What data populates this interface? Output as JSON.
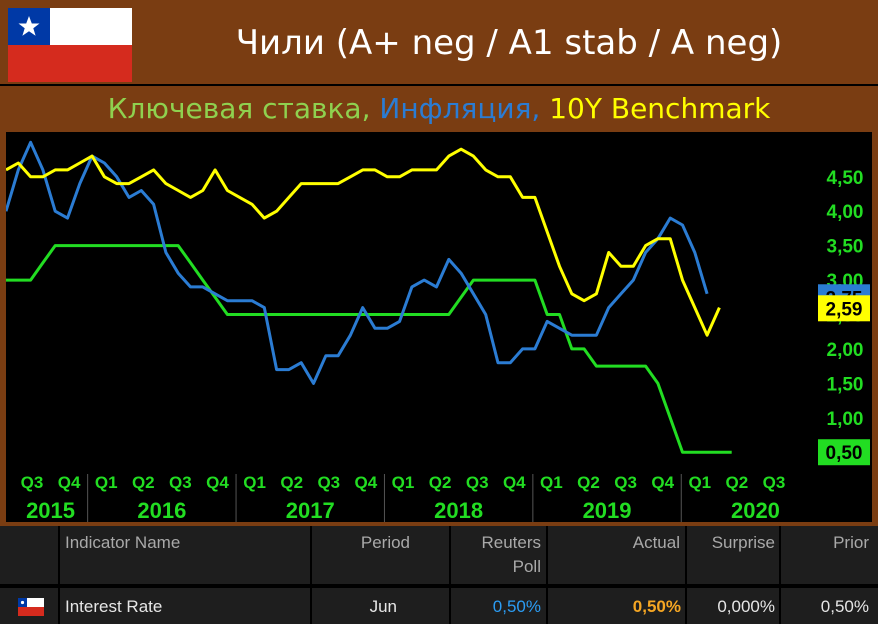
{
  "header": {
    "title": "Чили (A+ neg / A1 stab / A neg)",
    "subtitle_parts": [
      {
        "text": "Ключевая ставка,",
        "color": "#8fd14f"
      },
      {
        "text": "Инфляция,",
        "color": "#2b7cd3"
      },
      {
        "text": "10Y Benchmark",
        "color": "#ffff00"
      }
    ]
  },
  "chart_data": {
    "type": "line",
    "x": [
      "2015-07",
      "2015-08",
      "2015-09",
      "2015-10",
      "2015-11",
      "2015-12",
      "2016-01",
      "2016-02",
      "2016-03",
      "2016-04",
      "2016-05",
      "2016-06",
      "2016-07",
      "2016-08",
      "2016-09",
      "2016-10",
      "2016-11",
      "2016-12",
      "2017-01",
      "2017-02",
      "2017-03",
      "2017-04",
      "2017-05",
      "2017-06",
      "2017-07",
      "2017-08",
      "2017-09",
      "2017-10",
      "2017-11",
      "2017-12",
      "2018-01",
      "2018-02",
      "2018-03",
      "2018-04",
      "2018-05",
      "2018-06",
      "2018-07",
      "2018-08",
      "2018-09",
      "2018-10",
      "2018-11",
      "2018-12",
      "2019-01",
      "2019-02",
      "2019-03",
      "2019-04",
      "2019-05",
      "2019-06",
      "2019-07",
      "2019-08",
      "2019-09",
      "2019-10",
      "2019-11",
      "2019-12",
      "2020-01",
      "2020-02",
      "2020-03",
      "2020-04",
      "2020-05",
      "2020-06",
      "2020-07",
      "2020-08"
    ],
    "series": [
      {
        "name": "Ключевая ставка",
        "color": "#22dd22",
        "values": [
          3.0,
          3.0,
          3.0,
          3.25,
          3.5,
          3.5,
          3.5,
          3.5,
          3.5,
          3.5,
          3.5,
          3.5,
          3.5,
          3.5,
          3.5,
          3.25,
          3.0,
          2.75,
          2.5,
          2.5,
          2.5,
          2.5,
          2.5,
          2.5,
          2.5,
          2.5,
          2.5,
          2.5,
          2.5,
          2.5,
          2.5,
          2.5,
          2.5,
          2.5,
          2.5,
          2.5,
          2.5,
          2.75,
          3.0,
          3.0,
          3.0,
          3.0,
          3.0,
          3.0,
          2.5,
          2.5,
          2.0,
          2.0,
          1.75,
          1.75,
          1.75,
          1.75,
          1.75,
          1.5,
          1.0,
          0.5,
          0.5,
          0.5,
          0.5,
          0.5,
          null,
          null
        ]
      },
      {
        "name": "Инфляция",
        "color": "#2b7cd3",
        "values": [
          4.0,
          4.6,
          5.0,
          4.6,
          4.0,
          3.9,
          4.4,
          4.8,
          4.7,
          4.5,
          4.2,
          4.3,
          4.1,
          3.4,
          3.1,
          2.9,
          2.9,
          2.8,
          2.7,
          2.7,
          2.7,
          2.6,
          1.7,
          1.7,
          1.8,
          1.5,
          1.9,
          1.9,
          2.2,
          2.6,
          2.3,
          2.3,
          2.4,
          2.9,
          3.0,
          2.9,
          3.3,
          3.1,
          2.8,
          2.5,
          1.8,
          1.8,
          2.0,
          2.0,
          2.4,
          2.3,
          2.2,
          2.2,
          2.2,
          2.6,
          2.8,
          3.0,
          3.4,
          3.6,
          3.9,
          3.8,
          3.4,
          2.8,
          null,
          null,
          null,
          null
        ]
      },
      {
        "name": "10Y Benchmark",
        "color": "#ffff00",
        "values": [
          4.6,
          4.7,
          4.5,
          4.5,
          4.6,
          4.6,
          4.7,
          4.8,
          4.5,
          4.4,
          4.4,
          4.5,
          4.6,
          4.4,
          4.3,
          4.2,
          4.3,
          4.6,
          4.3,
          4.2,
          4.1,
          3.9,
          4.0,
          4.2,
          4.4,
          4.4,
          4.4,
          4.4,
          4.5,
          4.6,
          4.6,
          4.5,
          4.5,
          4.6,
          4.6,
          4.6,
          4.8,
          4.9,
          4.8,
          4.6,
          4.5,
          4.5,
          4.2,
          4.2,
          3.7,
          3.2,
          2.8,
          2.7,
          2.8,
          3.4,
          3.2,
          3.2,
          3.5,
          3.6,
          3.6,
          3.0,
          2.6,
          2.2,
          2.6,
          null,
          null,
          null
        ]
      }
    ],
    "ylim": [
      0.3,
      5.15
    ],
    "yticks": [
      "4,50",
      "4,00",
      "3,50",
      "3,00",
      "2,50",
      "2,00",
      "1,50",
      "1,00"
    ],
    "last_values": [
      {
        "label": "2,75",
        "value": 2.75,
        "bg": "#2b7cd3",
        "fg": "#000000"
      },
      {
        "label": "2,59",
        "value": 2.59,
        "bg": "#ffff00",
        "fg": "#000000"
      },
      {
        "label": "0,50",
        "value": 0.5,
        "bg": "#22dd22",
        "fg": "#000000"
      }
    ],
    "quarter_labels": [
      "Q3",
      "Q4",
      "Q1",
      "Q2",
      "Q3",
      "Q4",
      "Q1",
      "Q2",
      "Q3",
      "Q4",
      "Q1",
      "Q2",
      "Q3",
      "Q4",
      "Q1",
      "Q2",
      "Q3",
      "Q4",
      "Q1",
      "Q2",
      "Q3"
    ],
    "year_labels": [
      "2015",
      "2016",
      "2017",
      "2018",
      "2019",
      "2020"
    ],
    "grid": false
  },
  "table": {
    "headers": {
      "name": "Indicator Name",
      "period": "Period",
      "poll_line1": "Reuters",
      "poll_line2": "Poll",
      "actual": "Actual",
      "surprise": "Surprise",
      "prior": "Prior"
    },
    "row": {
      "name": "Interest Rate",
      "period": "Jun",
      "poll": "0,50%",
      "actual": "0,50%",
      "surprise": "0,000%",
      "prior": "0,50%",
      "poll_color": "#2b9cf3",
      "actual_color": "#f5a623"
    }
  }
}
